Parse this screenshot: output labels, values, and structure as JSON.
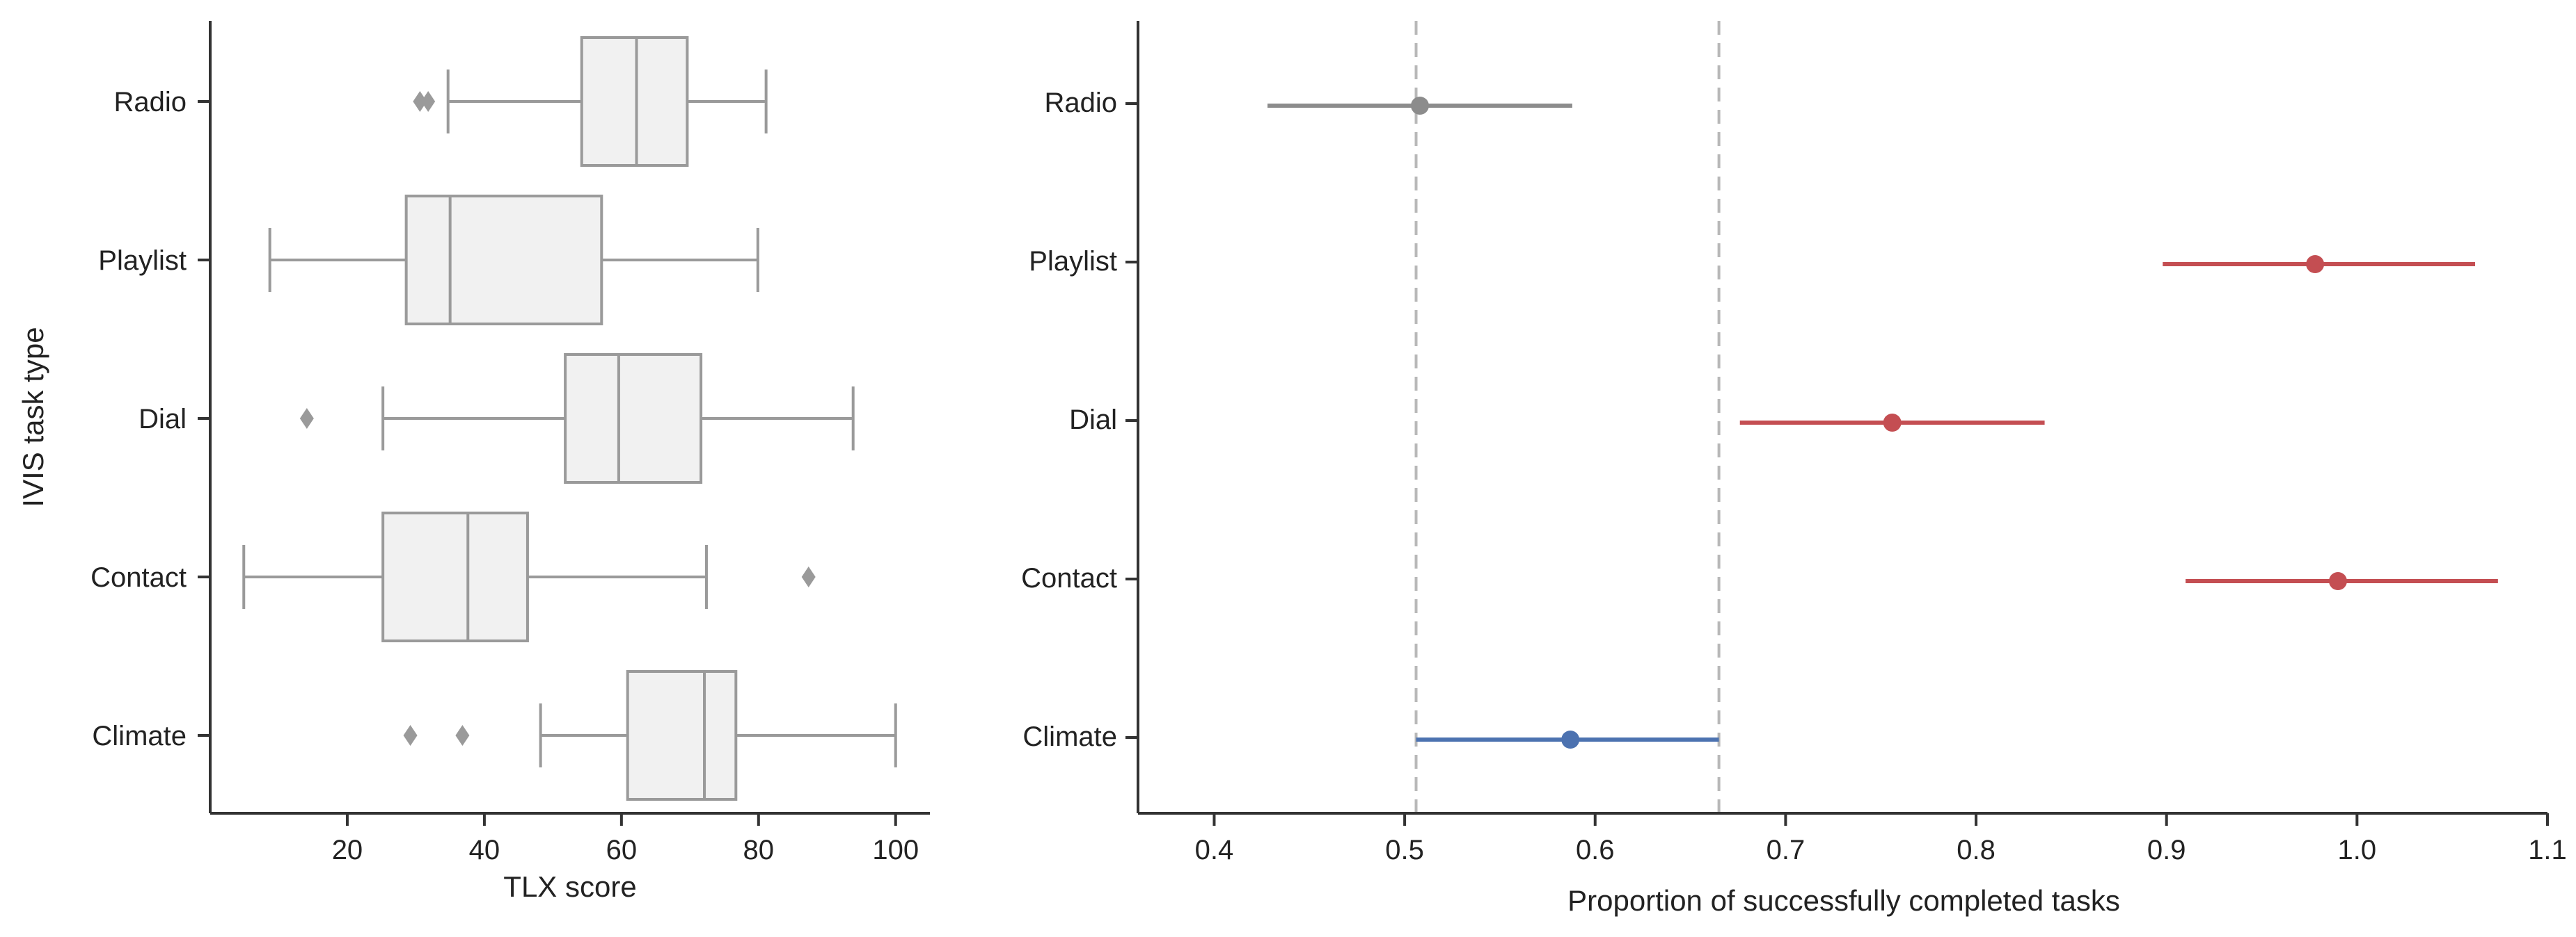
{
  "chart_data": [
    {
      "type": "box",
      "xlabel": "TLX score",
      "ylabel": "IVIS task type",
      "categories": [
        "Radio",
        "Playlist",
        "Dial",
        "Contact",
        "Climate"
      ],
      "xlim": [
        0,
        105
      ],
      "xticks": [
        20,
        40,
        60,
        80,
        100
      ],
      "boxes": [
        {
          "category": "Radio",
          "whisker_low": 34.7,
          "q1": 54.2,
          "median": 62.2,
          "q3": 69.6,
          "whisker_high": 81.1,
          "outliers": [
            30.6,
            31.8
          ]
        },
        {
          "category": "Playlist",
          "whisker_low": 8.7,
          "q1": 28.6,
          "median": 35.0,
          "q3": 57.1,
          "whisker_high": 79.9,
          "outliers": []
        },
        {
          "category": "Dial",
          "whisker_low": 25.2,
          "q1": 51.8,
          "median": 59.6,
          "q3": 71.6,
          "whisker_high": 93.8,
          "outliers": [
            14.1
          ]
        },
        {
          "category": "Contact",
          "whisker_low": 4.9,
          "q1": 25.2,
          "median": 37.6,
          "q3": 46.3,
          "whisker_high": 72.4,
          "outliers": [
            87.3
          ]
        },
        {
          "category": "Climate",
          "whisker_low": 48.2,
          "q1": 60.9,
          "median": 72.1,
          "q3": 76.7,
          "whisker_high": 100.0,
          "outliers": [
            29.2,
            36.8
          ]
        }
      ],
      "box_color": "#f1f1f1",
      "line_color": "#9a9a9a"
    },
    {
      "type": "pointrange",
      "xlabel": "Proportion of successfully completed tasks",
      "ylabel": "",
      "categories": [
        "Radio",
        "Playlist",
        "Dial",
        "Contact",
        "Climate"
      ],
      "xlim": [
        0.36,
        1.1
      ],
      "xticks": [
        "0.4",
        "0.5",
        "0.6",
        "0.7",
        "0.8",
        "0.9",
        "1.0",
        "1.1"
      ],
      "points": [
        {
          "category": "Radio",
          "estimate": 0.508,
          "low": 0.428,
          "high": 0.588,
          "color": "#8c8c8c"
        },
        {
          "category": "Playlist",
          "estimate": 0.978,
          "low": 0.898,
          "high": 1.062,
          "color": "#c44e52"
        },
        {
          "category": "Dial",
          "estimate": 0.756,
          "low": 0.676,
          "high": 0.836,
          "color": "#c44e52"
        },
        {
          "category": "Contact",
          "estimate": 0.99,
          "low": 0.91,
          "high": 1.074,
          "color": "#c44e52"
        },
        {
          "category": "Climate",
          "estimate": 0.587,
          "low": 0.506,
          "high": 0.665,
          "color": "#4c72b0"
        }
      ],
      "reference_lines": [
        0.506,
        0.665
      ],
      "reference_line_color": "#b8b8b8"
    }
  ]
}
